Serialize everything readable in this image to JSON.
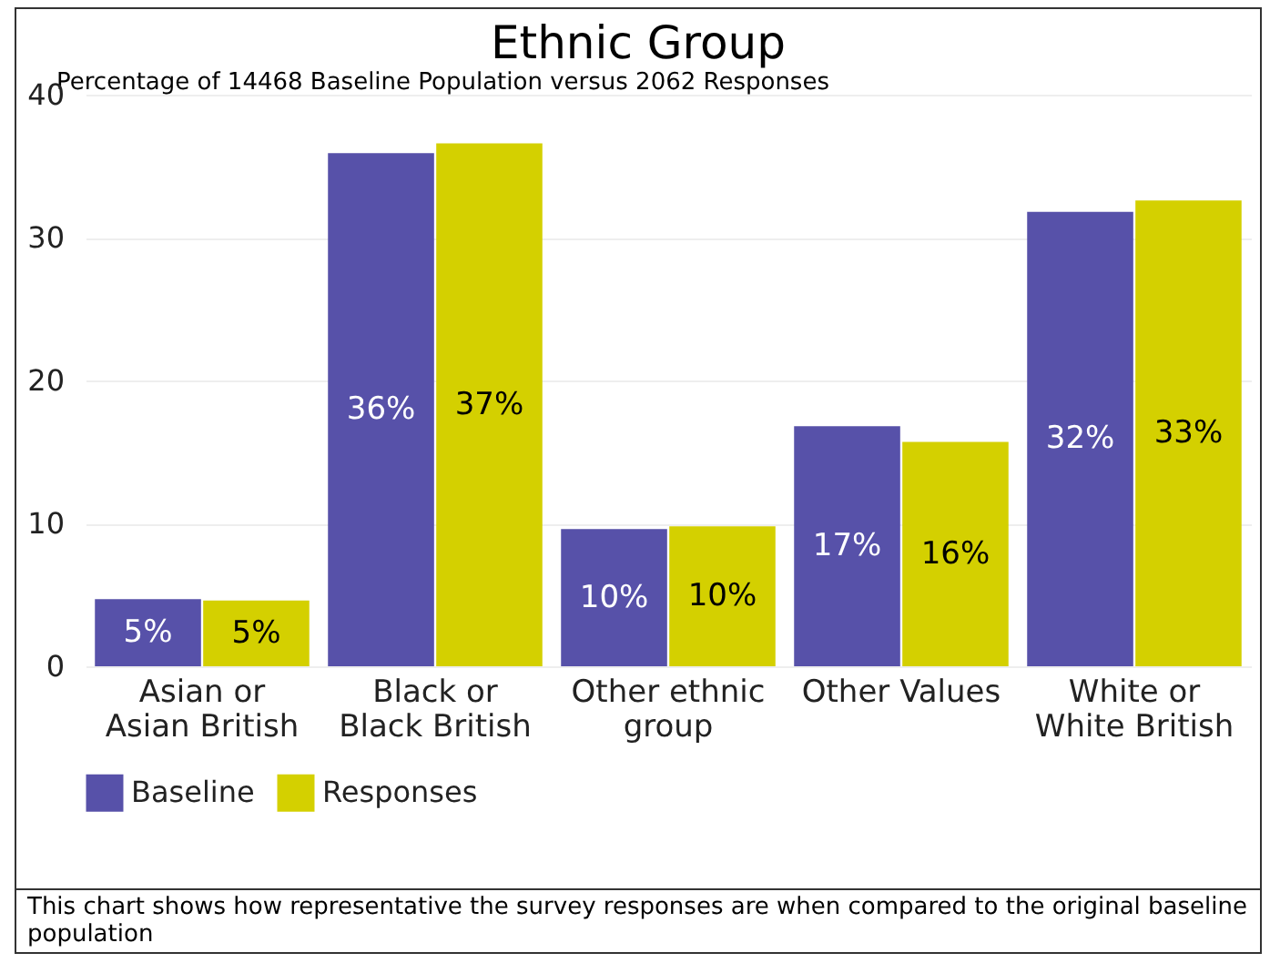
{
  "chart_data": {
    "type": "bar",
    "title": "Ethnic Group",
    "subtitle": "Percentage of 14468 Baseline Population versus 2062 Responses",
    "categories": [
      "Asian or Asian British",
      "Black or Black British",
      "Other ethnic group",
      "Other Values",
      "White or White British"
    ],
    "series": [
      {
        "name": "Baseline",
        "color": "#5751a9",
        "values": [
          4.7,
          35.9,
          9.6,
          16.8,
          31.8
        ],
        "value_labels": [
          "5%",
          "36%",
          "10%",
          "17%",
          "32%"
        ]
      },
      {
        "name": "Responses",
        "color": "#d4d000",
        "values": [
          4.6,
          36.6,
          9.8,
          15.7,
          32.6
        ],
        "value_labels": [
          "5%",
          "37%",
          "10%",
          "16%",
          "33%"
        ]
      }
    ],
    "ylim": [
      0,
      40
    ],
    "yticks": [
      0,
      10,
      20,
      30,
      40
    ],
    "grid": "y",
    "legend": "bottom left",
    "annotations": [
      "This chart shows how representative the survey responses are when compared to the original baseline population"
    ]
  }
}
